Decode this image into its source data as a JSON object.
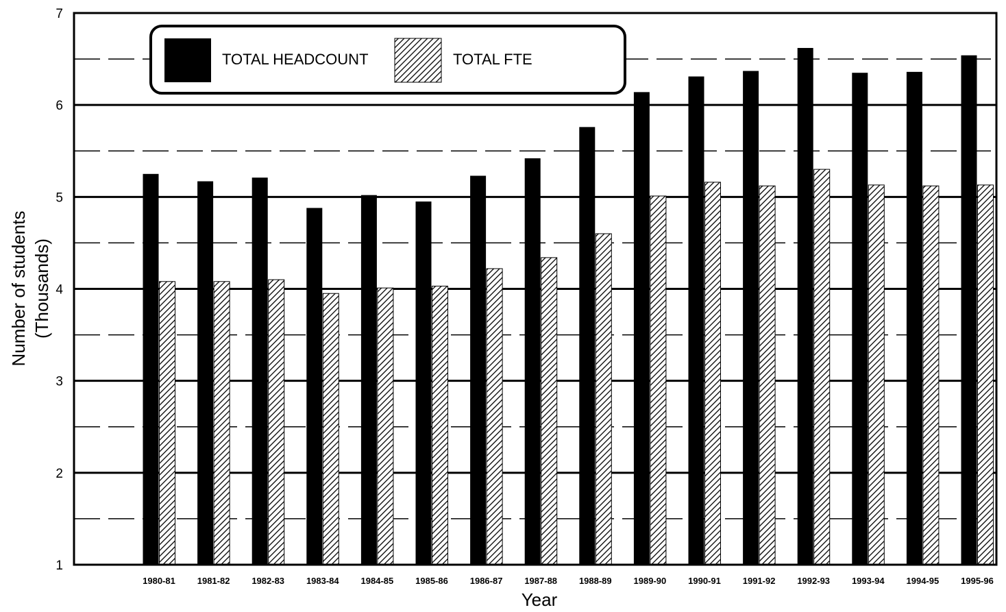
{
  "chart_data": {
    "type": "bar",
    "title": "",
    "xlabel": "Year",
    "ylabel": "Number of students",
    "ylabel_unit": "(Thousands)",
    "ylim": [
      1,
      7
    ],
    "yticks": [
      "1",
      "2",
      "3",
      "4",
      "5",
      "6",
      "7"
    ],
    "grid": "major solid, minor dashed",
    "legend_position": "top-left",
    "categories": [
      "1980-81",
      "1981-82",
      "1982-83",
      "1983-84",
      "1984-85",
      "1985-86",
      "1986-87",
      "1987-88",
      "1988-89",
      "1989-90",
      "1990-91",
      "1991-92",
      "1992-93",
      "1993-94",
      "1994-95",
      "1995-96"
    ],
    "series": [
      {
        "name": "TOTAL HEADCOUNT",
        "style": "solid",
        "color": "#000000",
        "values": [
          5.25,
          5.17,
          5.21,
          4.88,
          5.02,
          4.95,
          5.23,
          5.42,
          5.76,
          6.14,
          6.31,
          6.37,
          6.62,
          6.35,
          6.36,
          6.54
        ]
      },
      {
        "name": "TOTAL FTE",
        "style": "hatched",
        "color": "#000000",
        "values": [
          4.08,
          4.08,
          4.1,
          3.95,
          4.01,
          4.03,
          4.22,
          4.34,
          4.6,
          5.01,
          5.16,
          5.12,
          5.3,
          5.13,
          5.12,
          5.13
        ]
      }
    ]
  }
}
